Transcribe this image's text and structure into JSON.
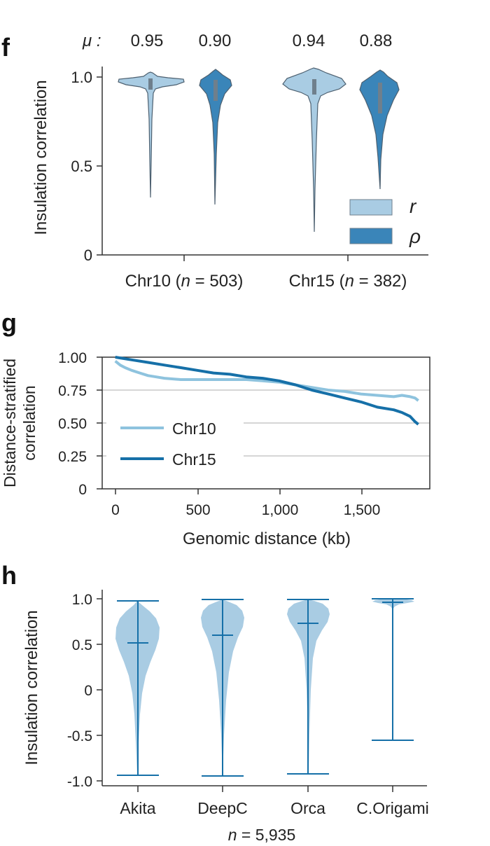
{
  "panels": {
    "f": {
      "panel_label": "f",
      "mu_label": "μ :",
      "mu_values": [
        "0.95",
        "0.90",
        "0.94",
        "0.88"
      ],
      "ylabel": "Insulation correlation",
      "yticks": [
        "0",
        "0.5",
        "1.0"
      ],
      "group_labels": [
        {
          "pre": "Chr10 (",
          "n": "n",
          "post": " = 503)"
        },
        {
          "pre": "Chr15 (",
          "n": "n",
          "post": " = 382)"
        }
      ],
      "legend": [
        {
          "label": "r",
          "color": "#a9cce3"
        },
        {
          "label": "ρ",
          "color": "#3a85b9"
        }
      ]
    },
    "g": {
      "panel_label": "g",
      "ylabel_line1": "Distance-stratified",
      "ylabel_line2": "correlation",
      "xlabel": "Genomic distance (kb)",
      "yticks": [
        "0",
        "0.25",
        "0.50",
        "0.75",
        "1.00"
      ],
      "xticks": [
        "0",
        "500",
        "1,000",
        "1,500"
      ],
      "legend": [
        {
          "label": "Chr10",
          "color": "#8ec3de"
        },
        {
          "label": "Chr15",
          "color": "#1670a8"
        }
      ]
    },
    "h": {
      "panel_label": "h",
      "ylabel": "Insulation correlation",
      "yticks": [
        "-1.0",
        "-0.5",
        "0",
        "0.5",
        "1.0"
      ],
      "categories": [
        "Akita",
        "DeepC",
        "Orca",
        "C.Origami"
      ],
      "n_label_italic": "n",
      "n_label_rest": " = 5,935"
    }
  },
  "chart_data": [
    {
      "type": "violin",
      "panel": "f",
      "groups": [
        "Chr10",
        "Chr15"
      ],
      "series": [
        {
          "name": "r",
          "color": "#a9cce3",
          "stats": [
            {
              "group": "Chr10",
              "mean": 0.95,
              "min": 0.33,
              "max": 1.03,
              "median": 0.96
            },
            {
              "group": "Chr15",
              "mean": 0.94,
              "min": 0.13,
              "max": 1.05,
              "median": 0.95
            }
          ]
        },
        {
          "name": "ρ",
          "color": "#3a85b9",
          "stats": [
            {
              "group": "Chr10",
              "mean": 0.9,
              "min": 0.29,
              "max": 1.04,
              "median": 0.92
            },
            {
              "group": "Chr15",
              "mean": 0.88,
              "min": 0.37,
              "max": 1.04,
              "median": 0.89
            }
          ]
        }
      ],
      "ylim": [
        0,
        1.05
      ]
    },
    {
      "type": "line",
      "panel": "g",
      "xlabel": "Genomic distance (kb)",
      "xlim": [
        -80,
        1920
      ],
      "ylim": [
        0,
        1.0
      ],
      "grid": "horizontal",
      "legend_placement": "bottom-left",
      "series": [
        {
          "name": "Chr10",
          "color": "#8ec3de",
          "x": [
            0,
            30,
            60,
            100,
            150,
            200,
            250,
            300,
            400,
            500,
            600,
            700,
            800,
            900,
            1000,
            1100,
            1200,
            1300,
            1400,
            1500,
            1600,
            1700,
            1750,
            1800,
            1830,
            1850
          ],
          "y": [
            0.97,
            0.94,
            0.92,
            0.9,
            0.88,
            0.86,
            0.85,
            0.84,
            0.83,
            0.83,
            0.83,
            0.83,
            0.83,
            0.82,
            0.81,
            0.79,
            0.77,
            0.75,
            0.74,
            0.72,
            0.71,
            0.7,
            0.71,
            0.7,
            0.69,
            0.67
          ]
        },
        {
          "name": "Chr15",
          "color": "#1670a8",
          "x": [
            0,
            50,
            100,
            200,
            300,
            400,
            500,
            600,
            700,
            800,
            900,
            1000,
            1100,
            1200,
            1300,
            1400,
            1500,
            1600,
            1700,
            1750,
            1800,
            1830,
            1850
          ],
          "y": [
            1.0,
            0.99,
            0.98,
            0.96,
            0.94,
            0.92,
            0.9,
            0.88,
            0.87,
            0.85,
            0.84,
            0.82,
            0.79,
            0.75,
            0.72,
            0.69,
            0.66,
            0.62,
            0.6,
            0.58,
            0.55,
            0.51,
            0.49
          ]
        }
      ]
    },
    {
      "type": "violin",
      "panel": "h",
      "categories": [
        "Akita",
        "DeepC",
        "Orca",
        "C.Origami"
      ],
      "color": "#a9cce3",
      "line_color": "#1670a8",
      "stats": [
        {
          "name": "Akita",
          "min": -0.93,
          "max": 0.98,
          "median": 0.51
        },
        {
          "name": "DeepC",
          "min": -0.95,
          "max": 1.0,
          "median": 0.6
        },
        {
          "name": "Orca",
          "min": -0.92,
          "max": 1.0,
          "median": 0.73
        },
        {
          "name": "C.Origami",
          "min": -0.55,
          "max": 1.0,
          "median": 0.96
        }
      ],
      "ylim": [
        -1.05,
        1.1
      ]
    }
  ]
}
